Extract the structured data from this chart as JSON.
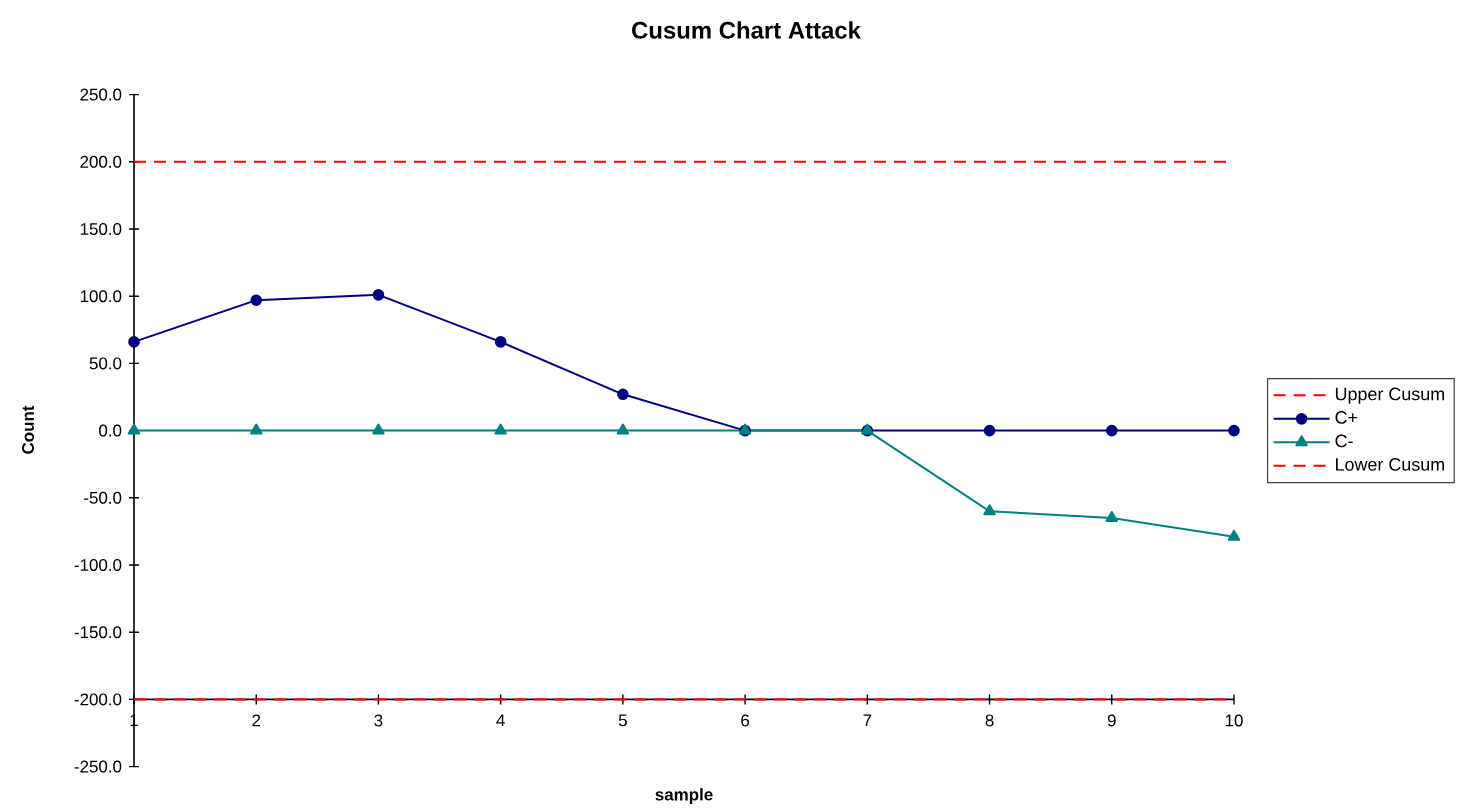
{
  "chart_data": {
    "type": "line",
    "title": "Cusum Chart Attack",
    "xlabel": "sample",
    "ylabel": "Count",
    "categories": [
      "1",
      "2",
      "3",
      "4",
      "5",
      "6",
      "7",
      "8",
      "9",
      "10"
    ],
    "series": [
      {
        "name": "Upper Cusum",
        "color": "#ff0000",
        "line_style": "dashed",
        "marker": "none",
        "values": [
          200,
          200,
          200,
          200,
          200,
          200,
          200,
          200,
          200,
          200
        ]
      },
      {
        "name": "C+",
        "color": "#000080",
        "line_style": "solid",
        "marker": "circle",
        "values": [
          66,
          97,
          101,
          66,
          27,
          0,
          0,
          0,
          0,
          0
        ]
      },
      {
        "name": "C-",
        "color": "#008080",
        "line_style": "solid",
        "marker": "triangle",
        "values": [
          0,
          0,
          0,
          0,
          0,
          0,
          0,
          -60,
          -65,
          -79
        ]
      },
      {
        "name": "Lower Cusum",
        "color": "#ff0000",
        "line_style": "dashed",
        "marker": "none",
        "values": [
          -200,
          -200,
          -200,
          -200,
          -200,
          -200,
          -200,
          -200,
          -200,
          -200
        ]
      }
    ],
    "ylim": [
      -250,
      250
    ],
    "yticks": [
      {
        "value": -250,
        "label": "-250.0"
      },
      {
        "value": -200,
        "label": "-200.0"
      },
      {
        "value": -150,
        "label": "-150.0"
      },
      {
        "value": -100,
        "label": "-100.0"
      },
      {
        "value": -50,
        "label": "-50.0"
      },
      {
        "value": 0,
        "label": "0.0"
      },
      {
        "value": 50,
        "label": "50.0"
      },
      {
        "value": 100,
        "label": "100.0"
      },
      {
        "value": 150,
        "label": "150.0"
      },
      {
        "value": 200,
        "label": "200.0"
      },
      {
        "value": 250,
        "label": "250.0"
      }
    ],
    "legend": "right"
  }
}
